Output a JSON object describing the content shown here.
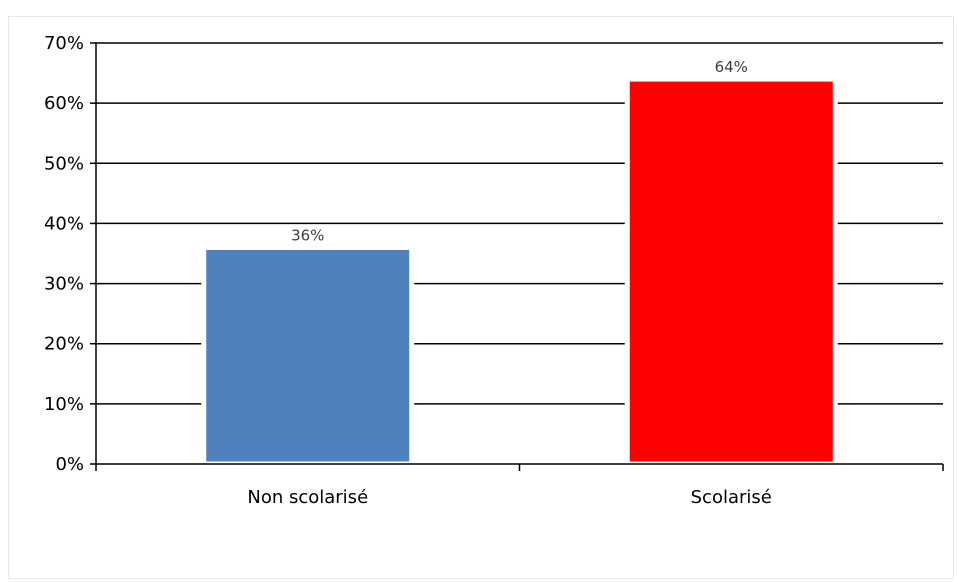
{
  "chart_data": {
    "type": "bar",
    "categories": [
      "Non scolarisé",
      "Scolarisé"
    ],
    "values": [
      36,
      64
    ],
    "data_labels": [
      "36%",
      "64%"
    ],
    "colors": [
      "#4f81bd",
      "#ff0000"
    ],
    "ylim": [
      0,
      70
    ],
    "yticks": [
      0,
      10,
      20,
      30,
      40,
      50,
      60,
      70
    ],
    "ytick_labels": [
      "0%",
      "10%",
      "20%",
      "30%",
      "40%",
      "50%",
      "60%",
      "70%"
    ],
    "grid": true,
    "title": "",
    "xlabel": "",
    "ylabel": ""
  }
}
